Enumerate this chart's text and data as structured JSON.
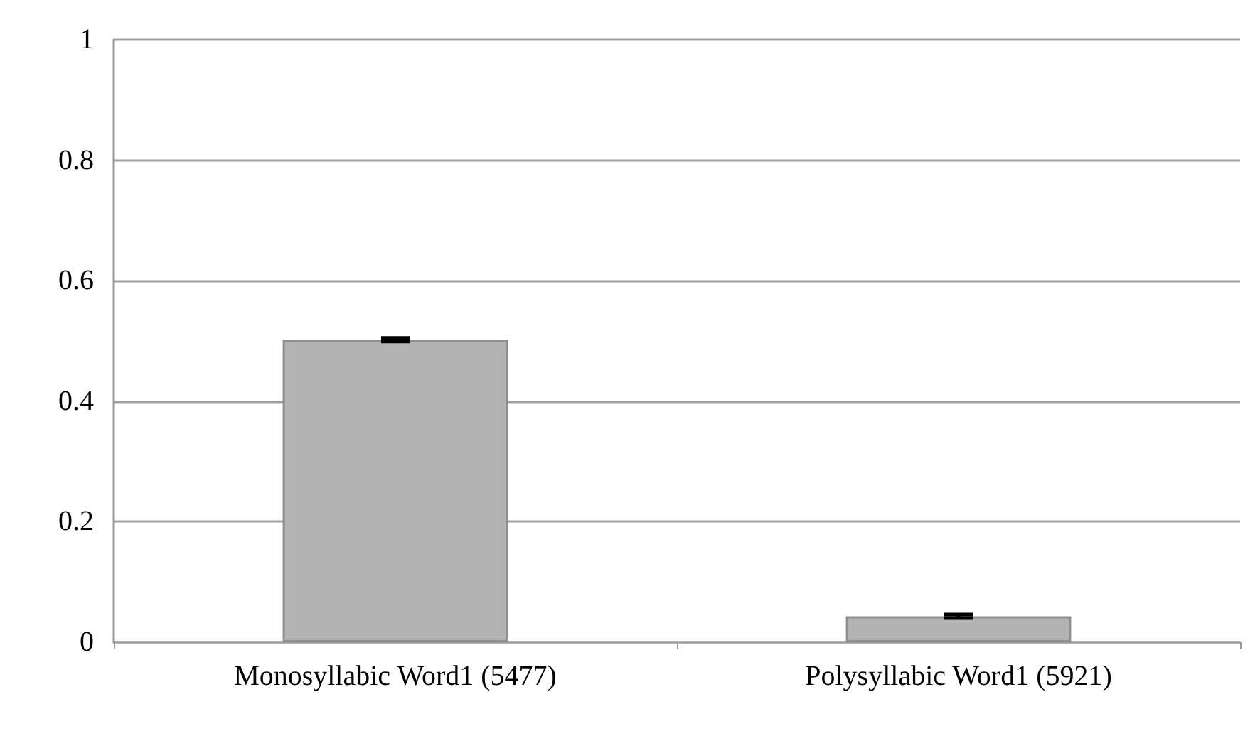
{
  "chart_data": {
    "type": "bar",
    "categories": [
      "Monosyllabic Word1 (5477)",
      "Polysyllabic Word1 (5921)"
    ],
    "values": [
      0.502,
      0.043
    ],
    "errors": [
      0.003,
      0.003
    ],
    "color": "#b3b3b3",
    "ylim": [
      0,
      1
    ],
    "yticks": [
      0,
      0.2,
      0.4,
      0.6,
      0.8,
      1
    ],
    "grid": "y"
  }
}
